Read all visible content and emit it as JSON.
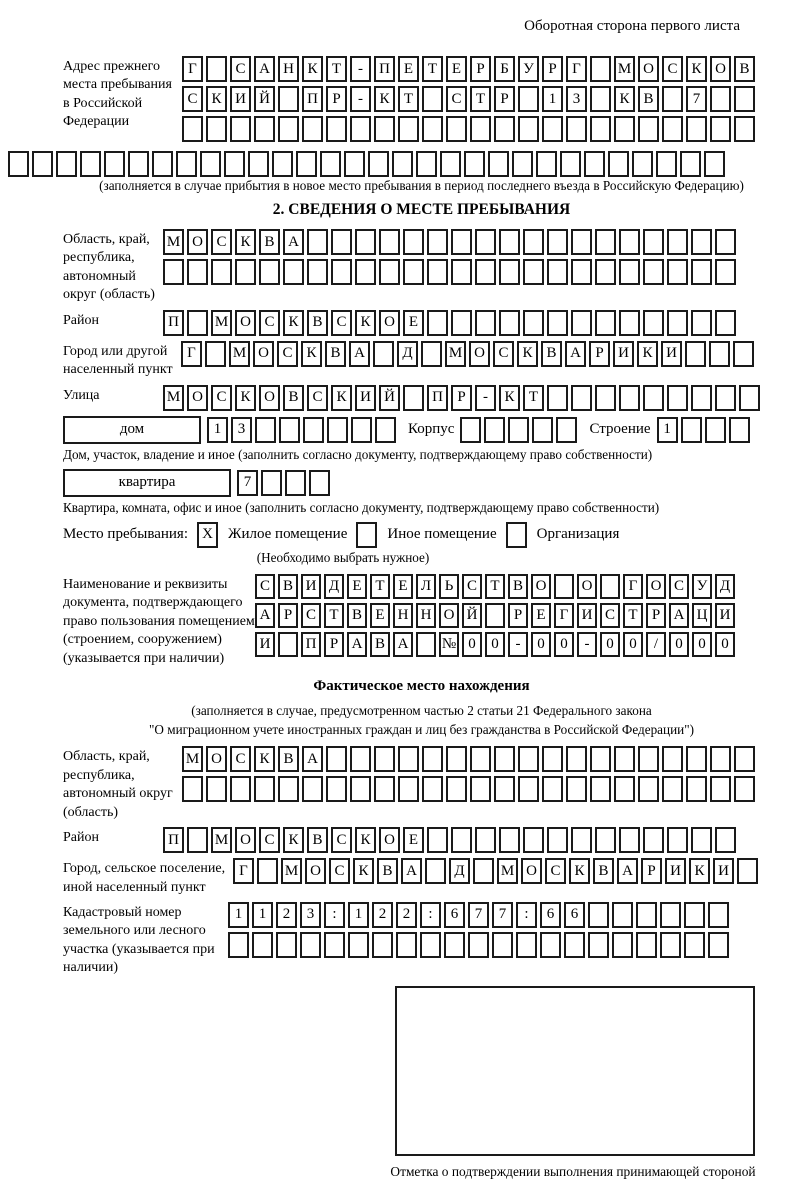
{
  "header": {
    "back_side_note": "Оборотная сторона первого листа"
  },
  "prev_address": {
    "label": "Адрес прежнего места пребывания в Российской Федерации",
    "caption": "(заполняется в случае прибытия в новое место пребывания в период последнего въезда в Российскую Федерацию)"
  },
  "section2": {
    "title": "2. СВЕДЕНИЯ О МЕСТЕ ПРЕБЫВАНИЯ",
    "oblast_label": "Область, край, республика, автономный округ (область)",
    "rayon_label": "Район",
    "gorod_label": "Город или другой населенный пункт",
    "ulitsa_label": "Улица",
    "dom_label": "дом",
    "korpus_label": "Корпус",
    "stroenie_label": "Строение",
    "dom_caption": "Дом, участок, владение и иное (заполнить согласно документу, подтверждающему право собственности)",
    "kvartira_label": "квартира",
    "kvartira_caption": "Квартира, комната, офис и иное (заполнить согласно документу, подтверждающему право собственности)",
    "mesto_label": "Место пребывания:",
    "mesto_options": [
      {
        "label": "Жилое помещение",
        "checked": true
      },
      {
        "label": "Иное помещение",
        "checked": false
      },
      {
        "label": "Организация",
        "checked": false
      }
    ],
    "mesto_note": "(Необходимо выбрать нужное)",
    "doc_label": "Наименование и реквизиты документа, подтверждающего право пользования помещением (строением, сооружением) (указывается при наличии)"
  },
  "fact_location": {
    "title": "Фактическое место нахождения",
    "note1": "(заполняется в случае, предусмотренном частью 2 статьи 21 Федерального закона",
    "note2": "\"О миграционном учете иностранных граждан и лиц без гражданства в Российской Федерации\")",
    "oblast_label": "Область, край, республика, автономный округ (область)",
    "rayon_label": "Район",
    "gorod_label": "Город, сельское поселение, иной населенный пункт",
    "kadastr_label": "Кадастровый номер земельного или лесного участка (указывается при наличии)",
    "stamp_caption": "Отметка о подтверждении выполнения принимающей стороной и иностранным гражданином или лицом без гражданства действий, необходимых для его постановки на учет по месту пребывания"
  },
  "grids": {
    "prev_addr_row1": {
      "text": "Г САНКТ-ПЕТЕРБУРГ МОСКОВ",
      "len": 24
    },
    "prev_addr_row2": {
      "text": "СКИЙ ПР-КТ СТР 13 КВ 7",
      "len": 24
    },
    "prev_addr_row3": {
      "text": "",
      "len": 24
    },
    "prev_addr_row4": {
      "text": "",
      "len": 30
    },
    "oblast_row1": {
      "text": "МОСКВА",
      "len": 24
    },
    "oblast_row2": {
      "text": "",
      "len": 24
    },
    "rayon": {
      "text": "П МОСКВСКОЕ",
      "len": 24
    },
    "gorod": {
      "text": "Г МОСКВА Д МОСКВАРИКИ",
      "len": 24
    },
    "ulitsa": {
      "text": "МОСКОВСКИЙ ПР-КТ",
      "len": 25
    },
    "dom": {
      "text": "13",
      "len": 8
    },
    "korpus": {
      "text": "",
      "len": 5
    },
    "stroenie": {
      "text": "1",
      "len": 4
    },
    "kvartira": {
      "text": "7",
      "len": 4
    },
    "mesto_check1": {
      "text": "X",
      "len": 1
    },
    "mesto_check2": {
      "text": "",
      "len": 1
    },
    "mesto_check3": {
      "text": "",
      "len": 1
    },
    "doc_row1": {
      "text": "СВИДЕТЕЛЬСТВО О ГОСУД",
      "len": 21,
      "small": true
    },
    "doc_row2": {
      "text": "АРСТВЕННОЙ РЕГИСТРАЦИ",
      "len": 21,
      "small": true
    },
    "doc_row3": {
      "text": "И ПРАВА №00-00-00/000",
      "len": 21,
      "small": true
    },
    "fact_oblast_row1": {
      "text": "МОСКВА",
      "len": 24
    },
    "fact_oblast_row2": {
      "text": "",
      "len": 24
    },
    "fact_rayon": {
      "text": "П МОСКВСКОЕ",
      "len": 24
    },
    "fact_gorod": {
      "text": "Г МОСКВА Д МОСКВАРИКИ",
      "len": 22
    },
    "kadastr_row1": {
      "text": "1123:122:677:66",
      "len": 21
    },
    "kadastr_row2": {
      "text": "",
      "len": 21
    }
  }
}
